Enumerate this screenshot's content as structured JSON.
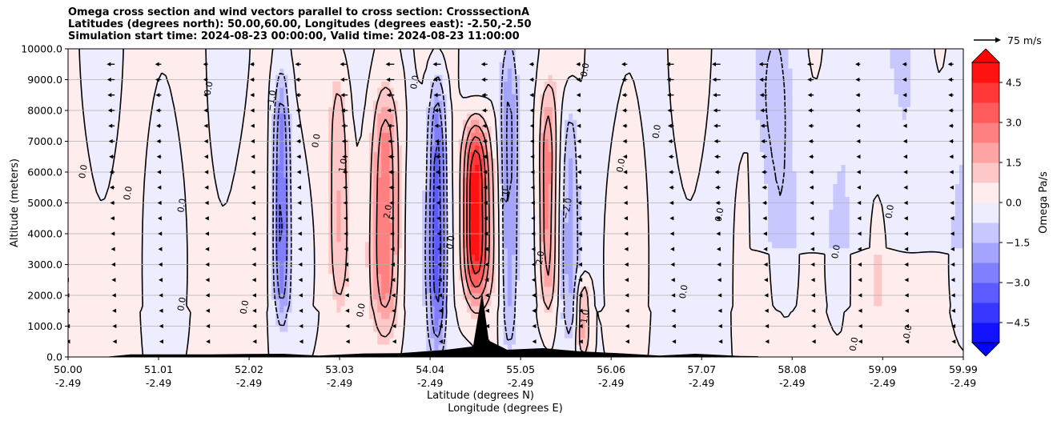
{
  "chart_data": {
    "type": "contour",
    "title_lines": [
      "Omega cross section and wind vectors parallel to cross section: CrosssectionA",
      "Latitudes (degrees north): 50.00,60.00, Longitudes (degrees east): -2.50,-2.50",
      "Simulation start time: 2024-08-23 00:00:00, Valid time: 2024-08-23 11:00:00"
    ],
    "ylabel": "Altitude (meters)",
    "xlabel_lat": "Latitude (degrees N)",
    "xlabel_lon": "Longitude (degrees E)",
    "ylim": [
      0,
      10000
    ],
    "y_ticks": [
      "0.0",
      "1000.0",
      "2000.0",
      "3000.0",
      "4000.0",
      "5000.0",
      "6000.0",
      "7000.0",
      "8000.0",
      "9000.0",
      "10000.0"
    ],
    "y_tick_values": [
      0,
      1000,
      2000,
      3000,
      4000,
      5000,
      6000,
      7000,
      8000,
      9000,
      10000
    ],
    "x_ticks_lat": [
      "50.00",
      "51.01",
      "52.02",
      "53.03",
      "54.04",
      "55.05",
      "56.06",
      "57.07",
      "58.08",
      "59.09",
      "59.99"
    ],
    "x_ticks_lon": [
      "-2.49",
      "-2.49",
      "-2.49",
      "-2.49",
      "-2.49",
      "-2.49",
      "-2.49",
      "-2.49",
      "-2.49",
      "-2.49",
      "-2.49"
    ],
    "x_tick_values": [
      50.0,
      51.01,
      52.02,
      53.03,
      54.04,
      55.05,
      56.06,
      57.07,
      58.08,
      59.09,
      59.99
    ],
    "xlim": [
      50.0,
      59.99
    ],
    "colorbar": {
      "label": "Omega Pa/s",
      "range": [
        -5.25,
        5.25
      ],
      "ticks": [
        "4.5",
        "3.0",
        "1.5",
        "0.0",
        "−1.5",
        "−3.0",
        "−4.5"
      ],
      "tick_values": [
        4.5,
        3.0,
        1.5,
        0.0,
        -1.5,
        -3.0,
        -4.5
      ],
      "cmap": "bwr",
      "extend": "both"
    },
    "quiver_key": {
      "label": "75 m/s",
      "value": 75
    },
    "omega_features": [
      {
        "name": "strong ascent core",
        "lat_center": 54.55,
        "lat_halfwidth": 0.14,
        "alt_bottom": 2000,
        "alt_top": 7500,
        "omega": 5.2
      },
      {
        "name": "descent band north",
        "lat_center": 54.92,
        "lat_halfwidth": 0.1,
        "alt_bottom": 300,
        "alt_top": 10000,
        "omega": -2.5
      },
      {
        "name": "descent band",
        "lat_center": 54.12,
        "lat_halfwidth": 0.1,
        "alt_bottom": 300,
        "alt_top": 9000,
        "omega": -3.5
      },
      {
        "name": "descent band",
        "lat_center": 52.38,
        "lat_halfwidth": 0.08,
        "alt_bottom": 1500,
        "alt_top": 9000,
        "omega": -2.8
      },
      {
        "name": "ascent band",
        "lat_center": 53.55,
        "lat_halfwidth": 0.15,
        "alt_bottom": 1000,
        "alt_top": 8500,
        "omega": 2.5
      },
      {
        "name": "ascent band",
        "lat_center": 55.35,
        "lat_halfwidth": 0.1,
        "alt_bottom": 1500,
        "alt_top": 8500,
        "omega": 2.8
      },
      {
        "name": "descent band",
        "lat_center": 55.6,
        "lat_halfwidth": 0.1,
        "alt_bottom": 500,
        "alt_top": 8500,
        "omega": -1.8
      },
      {
        "name": "ascent band",
        "lat_center": 55.75,
        "lat_halfwidth": 0.08,
        "alt_bottom": 0,
        "alt_top": 2500,
        "omega": 2.0
      },
      {
        "name": "ascent band",
        "lat_center": 53.03,
        "lat_halfwidth": 0.12,
        "alt_bottom": 1500,
        "alt_top": 9500,
        "omega": 1.6
      },
      {
        "name": "weak descent",
        "lat_center": 57.8,
        "lat_halfwidth": 0.3,
        "alt_bottom": 1000,
        "alt_top": 10000,
        "omega": -0.5
      }
    ],
    "contour_labels": [
      "0.0",
      "1.0",
      "2.0",
      "3.0",
      "4.0",
      "−1.0",
      "−2.0",
      "1.0",
      "0.0",
      "1.0",
      "2.0"
    ],
    "terrain": [
      {
        "lat": 50.4,
        "alt": 0
      },
      {
        "lat": 50.7,
        "alt": 60
      },
      {
        "lat": 51.2,
        "alt": 100
      },
      {
        "lat": 51.6,
        "alt": 60
      },
      {
        "lat": 52.0,
        "alt": 110
      },
      {
        "lat": 52.4,
        "alt": 80
      },
      {
        "lat": 52.8,
        "alt": 60
      },
      {
        "lat": 53.3,
        "alt": 90
      },
      {
        "lat": 53.7,
        "alt": 140
      },
      {
        "lat": 54.2,
        "alt": 200
      },
      {
        "lat": 54.5,
        "alt": 350
      },
      {
        "lat": 54.7,
        "alt": 500
      },
      {
        "lat": 54.9,
        "alt": 250
      },
      {
        "lat": 55.3,
        "alt": 260
      },
      {
        "lat": 55.7,
        "alt": 200
      },
      {
        "lat": 56.2,
        "alt": 90
      },
      {
        "lat": 56.6,
        "alt": 60
      },
      {
        "lat": 57.0,
        "alt": 80
      },
      {
        "lat": 57.5,
        "alt": 50
      },
      {
        "lat": 57.7,
        "alt": 0
      }
    ],
    "wind_vectors": {
      "direction": "southward",
      "lat_step": 0.52,
      "alt_step": 500,
      "speed_upper_ms": 25,
      "speed_lower_ms": 5
    }
  }
}
